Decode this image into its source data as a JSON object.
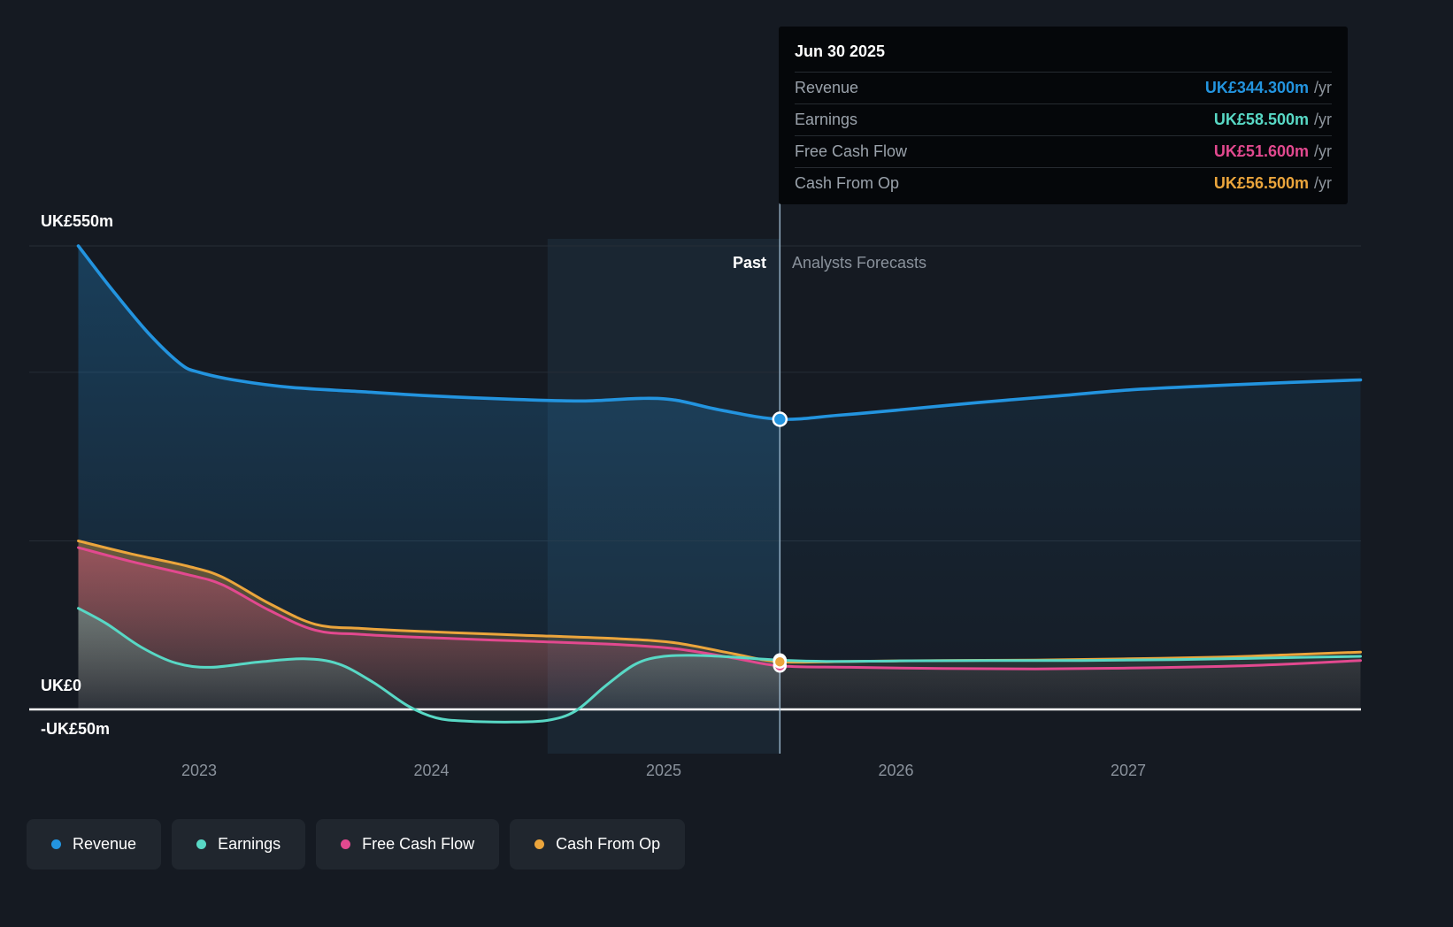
{
  "tooltip": {
    "date": "Jun 30 2025",
    "rows": [
      {
        "label": "Revenue",
        "value": "UK£344.300m",
        "suffix": "/yr",
        "color": "#2394DF"
      },
      {
        "label": "Earnings",
        "value": "UK£58.500m",
        "suffix": "/yr",
        "color": "#58D8C5"
      },
      {
        "label": "Free Cash Flow",
        "value": "UK£51.600m",
        "suffix": "/yr",
        "color": "#E2498F"
      },
      {
        "label": "Cash From Op",
        "value": "UK£56.500m",
        "suffix": "/yr",
        "color": "#EBA53C"
      }
    ]
  },
  "legend": {
    "items": [
      {
        "label": "Revenue",
        "color": "#2394DF"
      },
      {
        "label": "Earnings",
        "color": "#58D8C5"
      },
      {
        "label": "Free Cash Flow",
        "color": "#E2498F"
      },
      {
        "label": "Cash From Op",
        "color": "#EBA53C"
      }
    ]
  },
  "chart_data": {
    "type": "area",
    "unit": "UK£m",
    "past_label": "Past",
    "forecast_label": "Analysts Forecasts",
    "divider_year": 2025.5,
    "divider_date": "Jun 30 2025",
    "highlight_band_years": [
      2024.5,
      2025.5
    ],
    "x_axis": {
      "ticks": [
        "2023",
        "2024",
        "2025",
        "2026",
        "2027"
      ],
      "tick_years": [
        2023,
        2024,
        2025,
        2026,
        2027
      ],
      "range_years": [
        2022.27,
        2028.0
      ]
    },
    "y_axis": {
      "labels": [
        "UK£550m",
        "UK£0",
        "-UK£50m"
      ],
      "range_m": [
        -52,
        560
      ],
      "gridlines_m": [
        550,
        400,
        200
      ],
      "zero_line_m": 0
    },
    "legend_position": "bottom-left",
    "series": [
      {
        "name": "Revenue",
        "color": "#2394DF",
        "marker_value": 344.3,
        "points": [
          [
            2022.48,
            550
          ],
          [
            2022.62,
            500
          ],
          [
            2022.78,
            447
          ],
          [
            2022.92,
            410
          ],
          [
            2023.0,
            400
          ],
          [
            2023.17,
            390
          ],
          [
            2023.4,
            382
          ],
          [
            2023.7,
            377
          ],
          [
            2024.0,
            372
          ],
          [
            2024.35,
            368
          ],
          [
            2024.65,
            366
          ],
          [
            2024.9,
            369
          ],
          [
            2025.05,
            367
          ],
          [
            2025.25,
            355
          ],
          [
            2025.5,
            344.3
          ],
          [
            2025.75,
            349
          ],
          [
            2026.0,
            355
          ],
          [
            2026.35,
            364
          ],
          [
            2026.7,
            372
          ],
          [
            2027.0,
            379
          ],
          [
            2027.35,
            384
          ],
          [
            2027.7,
            388
          ],
          [
            2028.0,
            391
          ]
        ]
      },
      {
        "name": "Earnings",
        "color": "#58D8C5",
        "marker_value": 58.5,
        "points": [
          [
            2022.48,
            120
          ],
          [
            2022.6,
            102
          ],
          [
            2022.75,
            74
          ],
          [
            2022.9,
            55
          ],
          [
            2023.05,
            50
          ],
          [
            2023.25,
            56
          ],
          [
            2023.45,
            60
          ],
          [
            2023.6,
            54
          ],
          [
            2023.75,
            32
          ],
          [
            2023.9,
            4
          ],
          [
            2024.02,
            -10
          ],
          [
            2024.15,
            -14
          ],
          [
            2024.35,
            -15
          ],
          [
            2024.5,
            -13
          ],
          [
            2024.62,
            -2
          ],
          [
            2024.75,
            28
          ],
          [
            2024.88,
            54
          ],
          [
            2025.0,
            63
          ],
          [
            2025.15,
            64
          ],
          [
            2025.3,
            62
          ],
          [
            2025.5,
            58.5
          ],
          [
            2025.7,
            57
          ],
          [
            2026.0,
            57.5
          ],
          [
            2026.4,
            58
          ],
          [
            2026.8,
            58
          ],
          [
            2027.2,
            59
          ],
          [
            2027.6,
            61
          ],
          [
            2028.0,
            63
          ]
        ]
      },
      {
        "name": "Free Cash Flow",
        "color": "#E2498F",
        "marker_value": 51.6,
        "points": [
          [
            2022.48,
            192
          ],
          [
            2022.7,
            176
          ],
          [
            2022.95,
            160
          ],
          [
            2023.1,
            148
          ],
          [
            2023.3,
            118
          ],
          [
            2023.5,
            94
          ],
          [
            2023.7,
            89
          ],
          [
            2024.0,
            85
          ],
          [
            2024.4,
            81
          ],
          [
            2024.8,
            77
          ],
          [
            2025.05,
            72
          ],
          [
            2025.3,
            61
          ],
          [
            2025.5,
            51.6
          ],
          [
            2025.8,
            50
          ],
          [
            2026.2,
            48.5
          ],
          [
            2026.6,
            48
          ],
          [
            2027.0,
            49
          ],
          [
            2027.4,
            51
          ],
          [
            2027.7,
            54
          ],
          [
            2028.0,
            58
          ]
        ]
      },
      {
        "name": "Cash From Op",
        "color": "#EBA53C",
        "marker_value": 56.5,
        "points": [
          [
            2022.48,
            200
          ],
          [
            2022.7,
            185
          ],
          [
            2022.95,
            170
          ],
          [
            2023.1,
            157
          ],
          [
            2023.3,
            126
          ],
          [
            2023.5,
            101
          ],
          [
            2023.7,
            96
          ],
          [
            2024.0,
            92
          ],
          [
            2024.4,
            88
          ],
          [
            2024.8,
            84
          ],
          [
            2025.05,
            79
          ],
          [
            2025.3,
            66
          ],
          [
            2025.5,
            56.5
          ],
          [
            2025.8,
            57
          ],
          [
            2026.2,
            58
          ],
          [
            2026.6,
            58.5
          ],
          [
            2027.0,
            60
          ],
          [
            2027.4,
            62
          ],
          [
            2027.7,
            65
          ],
          [
            2028.0,
            68
          ]
        ]
      }
    ]
  }
}
